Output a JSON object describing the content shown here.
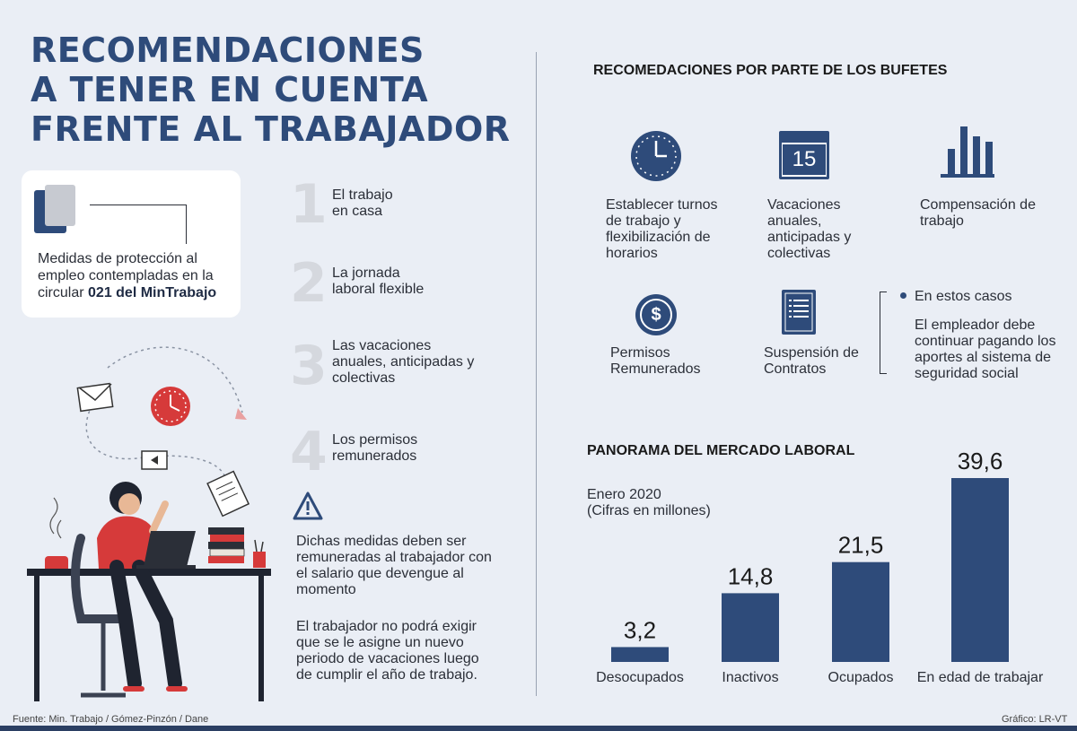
{
  "title_lines": [
    "RECOMENDACIONES",
    "A TENER EN CUENTA",
    "FRENTE AL TRABAJADOR"
  ],
  "card": {
    "text": "Medidas de protección al empleo contempladas en la circular",
    "bold": "021 del MinTrabajo"
  },
  "items": [
    {
      "number": "1",
      "label": "El trabajo en casa"
    },
    {
      "number": "2",
      "label": "La jornada laboral flexible"
    },
    {
      "number": "3",
      "label": "Las vacaciones anuales, anticipadas y colectivas"
    },
    {
      "number": "4",
      "label": "Los permisos remunerados"
    }
  ],
  "notes": [
    "Dichas medidas deben ser remuneradas al trabajador con el salario que devengue al momento",
    "El trabajador no podrá exigir que se le asigne un nuevo periodo de vacaciones luego de cumplir el año de trabajo."
  ],
  "recommendations": {
    "title": "RECOMEDACIONES POR PARTE DE LOS BUFETES",
    "items": [
      {
        "icon": "clock-icon",
        "label": "Establecer turnos de trabajo y flexibilización de horarios"
      },
      {
        "icon": "calendar-icon",
        "icon_text": "15",
        "label": "Vacaciones anuales, anticipadas y colectivas"
      },
      {
        "icon": "bar-chart-icon",
        "label": "Compensación de trabajo"
      },
      {
        "icon": "dollar-icon",
        "icon_text": "$",
        "label": "Permisos Remunerados"
      },
      {
        "icon": "contract-icon",
        "label": "Suspensión de Contratos"
      }
    ],
    "aside_bullet": "En estos casos",
    "aside_text": "El empleador debe continuar pagando los aportes al sistema de seguridad social"
  },
  "chart_data": {
    "type": "bar",
    "title": "PANORAMA DEL MERCADO LABORAL",
    "subtitle": "Enero 2020",
    "unit_note": "(Cifras en millones)",
    "categories": [
      "Desocupados",
      "Inactivos",
      "Ocupados",
      "En edad de trabajar"
    ],
    "values": [
      3.2,
      14.8,
      21.5,
      39.6
    ],
    "value_labels": [
      "3,2",
      "14,8",
      "21,5",
      "39,6"
    ],
    "ylim": [
      0,
      39.6
    ],
    "grid": false,
    "color": "#2e4b7a"
  },
  "footer": {
    "source": "Fuente: Min. Trabajo / Gómez-Pinzón / Dane",
    "credit": "Gráfico: LR-VT"
  },
  "colors": {
    "accent": "#2e4b7a",
    "background": "#eaeef5",
    "numbers": "#d5d8de"
  }
}
